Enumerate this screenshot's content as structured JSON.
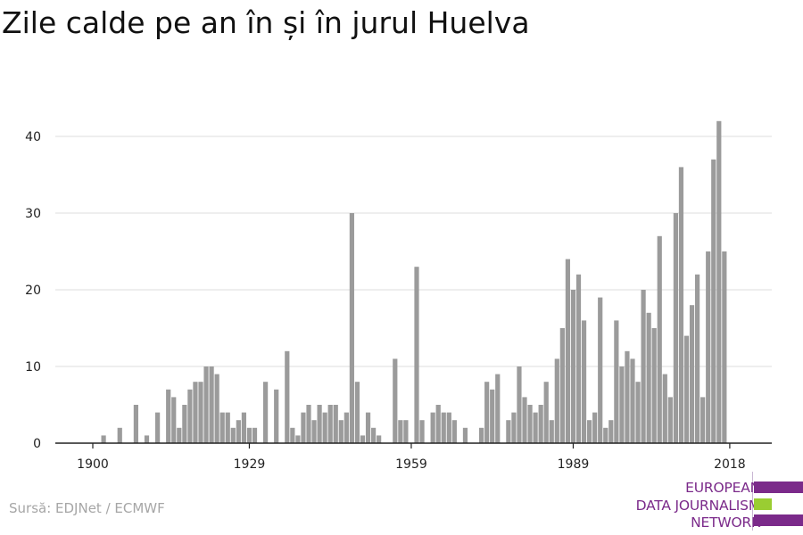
{
  "title": "Zile calde pe an în și în jurul Huelva",
  "source": "Sursă: EDJNet / ECMWF",
  "logo": {
    "lines": [
      "EUROPEAN",
      "DATA JOURNALISM",
      "NETWORK"
    ],
    "colors": [
      "#7b2a8a",
      "#9acd32",
      "#7b2a8a"
    ]
  },
  "colors": {
    "bar": "#9b9b9b",
    "grid": "#dddddd",
    "axis": "#222222",
    "text": "#222222"
  },
  "chart_data": {
    "type": "bar",
    "title": "Zile calde pe an în și în jurul Huelva",
    "xlabel": "",
    "ylabel": "",
    "ylim": [
      0,
      42
    ],
    "yticks": [
      0,
      10,
      20,
      30,
      40
    ],
    "xticks": [
      1900,
      1929,
      1959,
      1989,
      2018
    ],
    "grid": true,
    "x": [
      1900,
      1901,
      1902,
      1903,
      1904,
      1905,
      1906,
      1907,
      1908,
      1909,
      1910,
      1911,
      1912,
      1913,
      1914,
      1915,
      1916,
      1917,
      1918,
      1919,
      1920,
      1921,
      1922,
      1923,
      1924,
      1925,
      1926,
      1927,
      1928,
      1929,
      1930,
      1931,
      1932,
      1933,
      1934,
      1935,
      1936,
      1937,
      1938,
      1939,
      1940,
      1941,
      1942,
      1943,
      1944,
      1945,
      1946,
      1947,
      1948,
      1949,
      1950,
      1951,
      1952,
      1953,
      1954,
      1955,
      1956,
      1957,
      1958,
      1959,
      1960,
      1961,
      1962,
      1963,
      1964,
      1965,
      1966,
      1967,
      1968,
      1969,
      1970,
      1971,
      1972,
      1973,
      1974,
      1975,
      1976,
      1977,
      1978,
      1979,
      1980,
      1981,
      1982,
      1983,
      1984,
      1985,
      1986,
      1987,
      1988,
      1989,
      1990,
      1991,
      1992,
      1993,
      1994,
      1995,
      1996,
      1997,
      1998,
      1999,
      2000,
      2001,
      2002,
      2003,
      2004,
      2005,
      2006,
      2007,
      2008,
      2009,
      2010,
      2011,
      2012,
      2013,
      2014,
      2015,
      2016,
      2017,
      2018,
      2019
    ],
    "values": [
      0,
      0,
      1,
      0,
      0,
      2,
      0,
      0,
      5,
      0,
      1,
      0,
      4,
      0,
      7,
      6,
      2,
      5,
      7,
      8,
      8,
      10,
      10,
      9,
      4,
      4,
      2,
      3,
      4,
      2,
      2,
      0,
      8,
      0,
      7,
      0,
      12,
      2,
      1,
      4,
      5,
      3,
      5,
      4,
      5,
      5,
      3,
      4,
      30,
      8,
      1,
      4,
      2,
      1,
      0,
      0,
      11,
      3,
      3,
      0,
      23,
      3,
      0,
      4,
      5,
      4,
      4,
      3,
      0,
      2,
      0,
      0,
      2,
      8,
      7,
      9,
      0,
      3,
      4,
      10,
      6,
      5,
      4,
      5,
      8,
      3,
      11,
      15,
      24,
      20,
      22,
      16,
      3,
      4,
      19,
      2,
      3,
      16,
      10,
      12,
      11,
      8,
      20,
      17,
      15,
      27,
      9,
      6,
      30,
      36,
      14,
      18,
      22,
      6,
      25,
      37,
      42,
      25,
      0,
      0
    ]
  }
}
